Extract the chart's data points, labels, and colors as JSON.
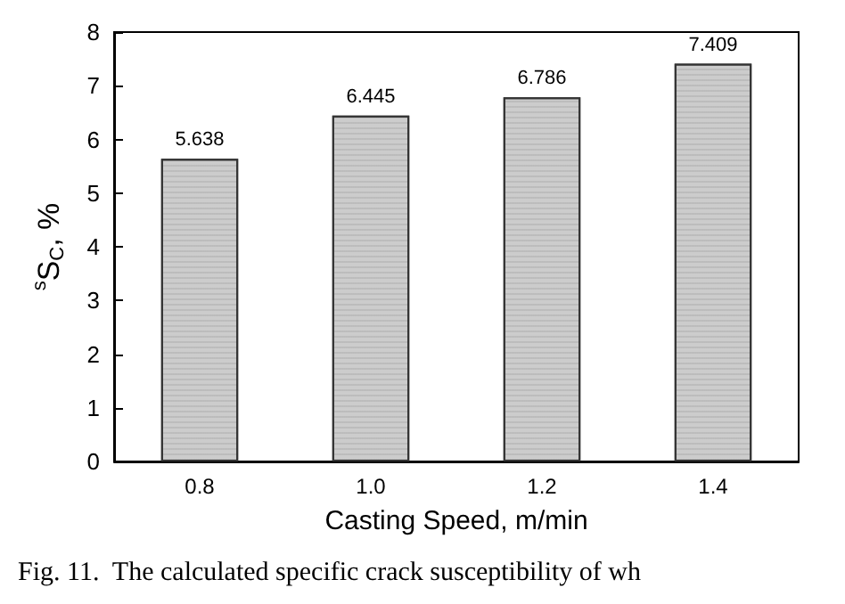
{
  "chart_data": {
    "type": "bar",
    "xlabel": "Casting Speed, m/min",
    "ylabel": "$^{s}$S$_{C}$, %",
    "categories": [
      "0.8",
      "1.0",
      "1.2",
      "1.4"
    ],
    "values": [
      5.638,
      6.445,
      6.786,
      7.409
    ],
    "color": "#cccccc",
    "data_labels": true,
    "ylim": [
      0,
      8
    ],
    "yticks": [
      0,
      1,
      2,
      3,
      4,
      5,
      6,
      7,
      8
    ],
    "grid": false,
    "annotations": [
      "Fig. 11.  The calculated specific crack susceptibility of wh"
    ]
  }
}
